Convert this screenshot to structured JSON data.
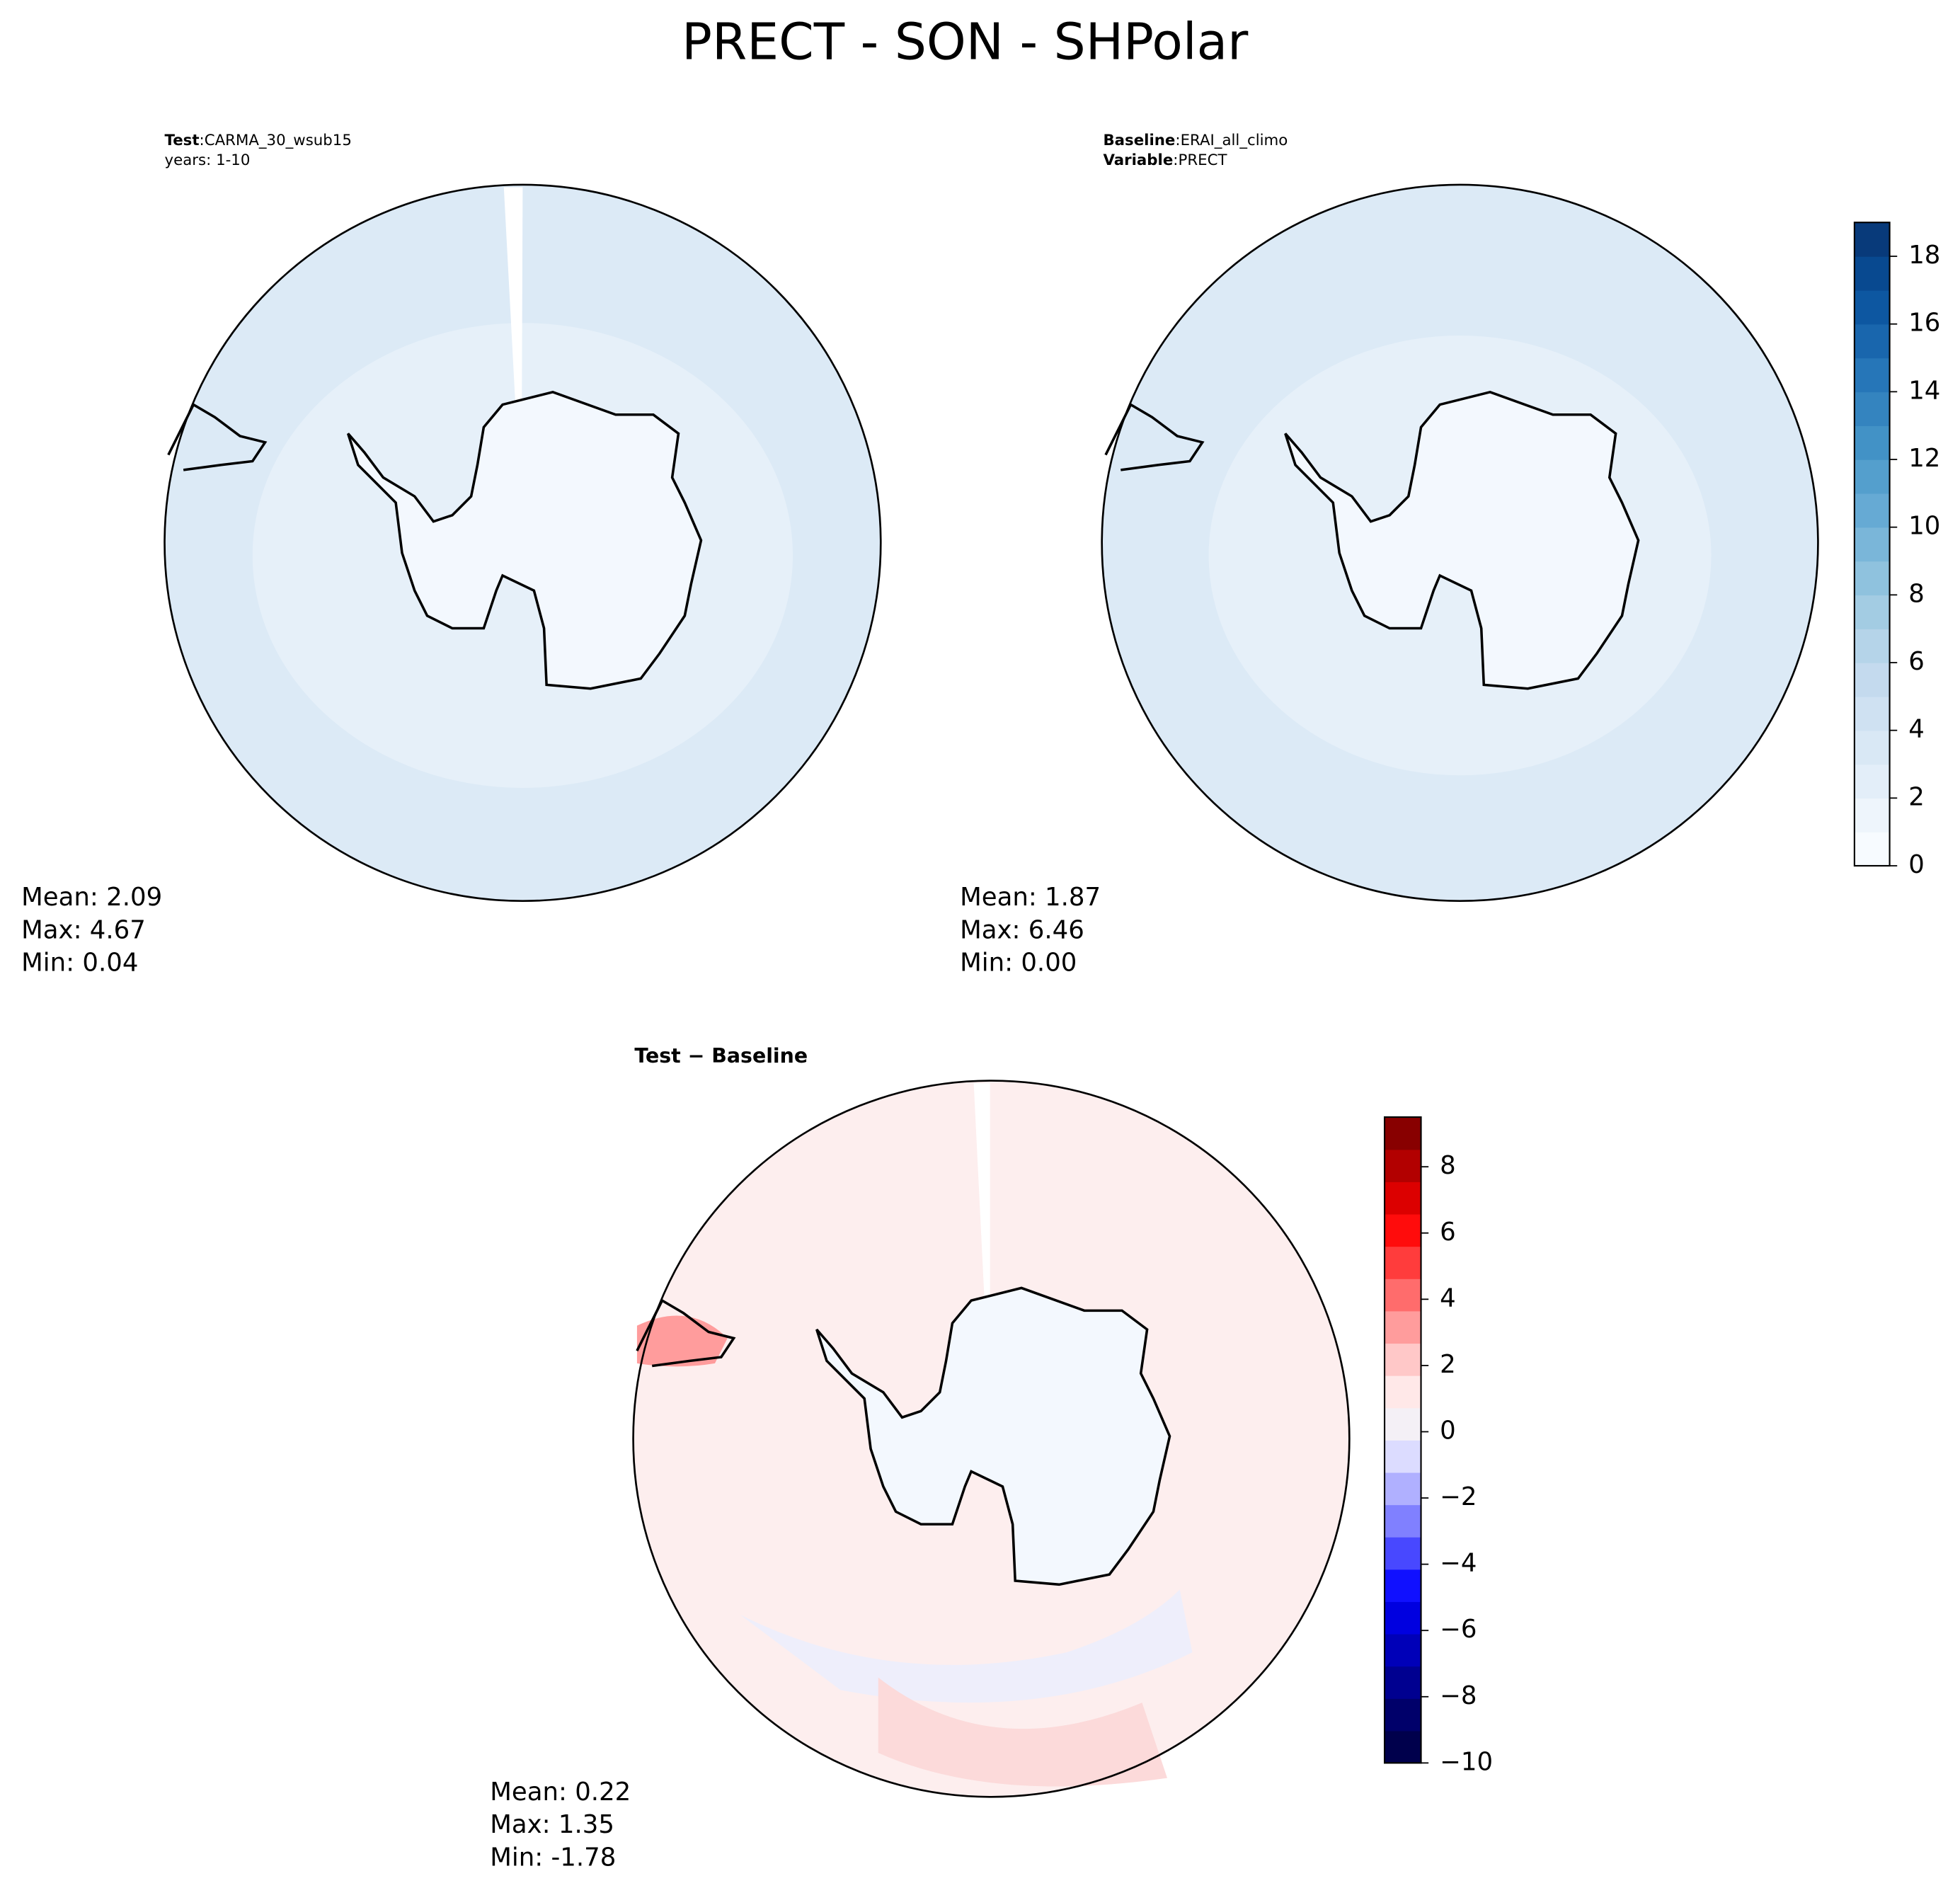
{
  "title": "PRECT - SON - SHPolar",
  "panels": [
    {
      "lines": [
        {
          "key": "Test",
          "sep": ":",
          "value": "CARMA_30_wsub15"
        },
        {
          "text": "years: 1-10"
        }
      ],
      "stats": [
        "Mean:  2.09",
        "Max:  4.67",
        "Min:  0.04"
      ]
    },
    {
      "lines": [
        {
          "key": "Baseline",
          "sep": ":",
          "value": "ERAI_all_climo"
        },
        {
          "key": "Variable",
          "sep": ":",
          "value": "PRECT"
        }
      ],
      "stats": [
        "Mean:  1.87",
        "Max:  6.46",
        "Min:  0.00"
      ]
    },
    {
      "heading": "Test − Baseline",
      "stats": [
        "Mean:  0.22",
        "Max:  1.35",
        "Min: -1.78"
      ]
    }
  ],
  "colorbars": [
    {
      "lim": [
        0,
        19
      ],
      "ticks": [
        0,
        2,
        4,
        6,
        8,
        10,
        12,
        14,
        16,
        18
      ],
      "colors": [
        "#f7fbff",
        "#eef5fc",
        "#e3eef9",
        "#d9e8f5",
        "#cfe1f2",
        "#c4daee",
        "#b5d4e9",
        "#a3cce3",
        "#8fc2de",
        "#7ab6d9",
        "#66aad4",
        "#549fcd",
        "#4292c6",
        "#3484bf",
        "#2676b8",
        "#1966ad",
        "#0d57a1",
        "#084990",
        "#083a7a"
      ]
    },
    {
      "lim": [
        -10,
        9.5
      ],
      "ticks": [
        {
          "value": -10,
          "label": "−10"
        },
        {
          "value": -8,
          "label": "−8"
        },
        {
          "value": -6,
          "label": "−6"
        },
        {
          "value": -4,
          "label": "−4"
        },
        {
          "value": -2,
          "label": "−2"
        },
        0,
        2,
        4,
        6,
        8
      ],
      "colors": [
        "#00004c",
        "#00006a",
        "#000090",
        "#0000b8",
        "#0000e0",
        "#1010ff",
        "#4848ff",
        "#8080ff",
        "#b0b0ff",
        "#dcdcff",
        "#f4f0f6",
        "#ffe8e8",
        "#ffc8c8",
        "#ff9c9c",
        "#ff6c6c",
        "#ff3c3c",
        "#ff0c0c",
        "#dc0000",
        "#b20000",
        "#880000"
      ]
    }
  ]
}
